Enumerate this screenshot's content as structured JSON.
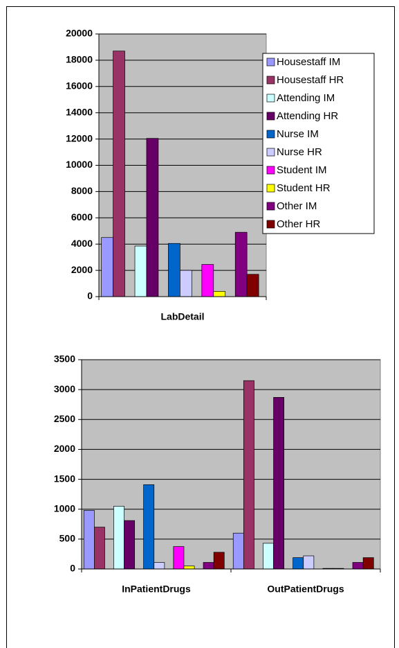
{
  "chart_data": [
    {
      "type": "bar",
      "categories": [
        "LabDetail"
      ],
      "ylim": [
        0,
        20000
      ],
      "yticks": [
        0,
        2000,
        4000,
        6000,
        8000,
        10000,
        12000,
        14000,
        16000,
        18000,
        20000
      ],
      "grid": true,
      "legend": "right",
      "series": [
        {
          "name": "Housestaff IM",
          "color": "#9999ff",
          "values": [
            4500
          ]
        },
        {
          "name": "Housestaff HR",
          "color": "#993366",
          "values": [
            18700
          ]
        },
        {
          "name": "Attending IM",
          "color": "#ccffff",
          "values": [
            3850
          ]
        },
        {
          "name": "Attending HR",
          "color": "#660066",
          "values": [
            12050
          ]
        },
        {
          "name": "Nurse IM",
          "color": "#0066cc",
          "values": [
            4050
          ]
        },
        {
          "name": "Nurse HR",
          "color": "#ccccff",
          "values": [
            2000
          ]
        },
        {
          "name": "Student IM",
          "color": "#ff00ff",
          "values": [
            2450
          ]
        },
        {
          "name": "Student HR",
          "color": "#ffff00",
          "values": [
            400
          ]
        },
        {
          "name": "Other IM",
          "color": "#800080",
          "values": [
            4900
          ]
        },
        {
          "name": "Other HR",
          "color": "#800000",
          "values": [
            1700
          ]
        }
      ]
    },
    {
      "type": "bar",
      "categories": [
        "InPatientDrugs",
        "OutPatientDrugs"
      ],
      "ylim": [
        0,
        3500
      ],
      "yticks": [
        0,
        500,
        1000,
        1500,
        2000,
        2500,
        3000,
        3500
      ],
      "grid": true,
      "series": [
        {
          "color": "#9999ff",
          "values": [
            980,
            600
          ]
        },
        {
          "color": "#993366",
          "values": [
            700,
            3150
          ]
        },
        {
          "color": "#ccffff",
          "values": [
            1050,
            430
          ]
        },
        {
          "color": "#660066",
          "values": [
            810,
            2870
          ]
        },
        {
          "color": "#0066cc",
          "values": [
            1410,
            190
          ]
        },
        {
          "color": "#ccccff",
          "values": [
            110,
            220
          ]
        },
        {
          "color": "#ff00ff",
          "values": [
            375,
            10
          ]
        },
        {
          "color": "#ffff00",
          "values": [
            50,
            10
          ]
        },
        {
          "color": "#800080",
          "values": [
            110,
            110
          ]
        },
        {
          "color": "#800000",
          "values": [
            280,
            190
          ]
        }
      ]
    }
  ]
}
